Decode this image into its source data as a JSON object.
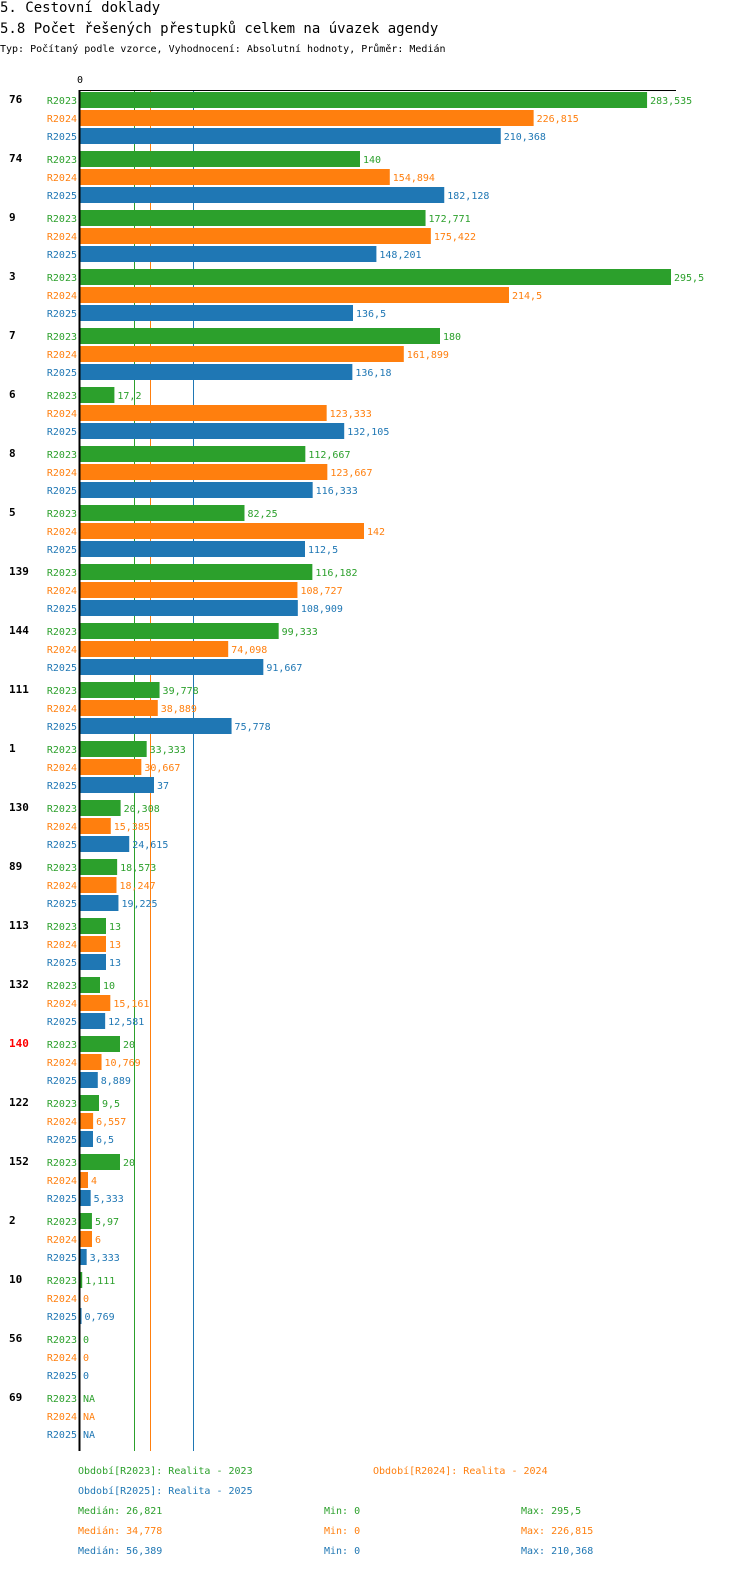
{
  "header": {
    "section": "5. Cestovní doklady",
    "title": "5.8 Počet řešených přestupků celkem na úvazek agendy",
    "subtitle": "Typ: Počítaný podle vzorce, Vyhodnocení: Absolutní hodnoty, Průměr: Medián"
  },
  "colors": {
    "R2023": "#2ca02c",
    "R2024": "#ff7f0e",
    "R2025": "#1f77b4",
    "highlight": "#ff0000"
  },
  "chart_data": {
    "type": "bar",
    "orientation": "horizontal",
    "title": "5.8 Počet řešených přestupků celkem na úvazek agendy",
    "axis_zero_label": "0",
    "xlim": [
      0,
      295.5
    ],
    "series_names": [
      "R2023",
      "R2024",
      "R2025"
    ],
    "highlighted_category": "140",
    "categories": [
      {
        "label": "76",
        "values": [
          283.535,
          226.815,
          210.368
        ],
        "labels": [
          "283,535",
          "226,815",
          "210,368"
        ]
      },
      {
        "label": "74",
        "values": [
          140,
          154.894,
          182.128
        ],
        "labels": [
          "140",
          "154,894",
          "182,128"
        ]
      },
      {
        "label": "9",
        "values": [
          172.771,
          175.422,
          148.201
        ],
        "labels": [
          "172,771",
          "175,422",
          "148,201"
        ]
      },
      {
        "label": "3",
        "values": [
          295.5,
          214.5,
          136.5
        ],
        "labels": [
          "295,5",
          "214,5",
          "136,5"
        ]
      },
      {
        "label": "7",
        "values": [
          180,
          161.899,
          136.18
        ],
        "labels": [
          "180",
          "161,899",
          "136,18"
        ]
      },
      {
        "label": "6",
        "values": [
          17.2,
          123.333,
          132.105
        ],
        "labels": [
          "17,2",
          "123,333",
          "132,105"
        ]
      },
      {
        "label": "8",
        "values": [
          112.667,
          123.667,
          116.333
        ],
        "labels": [
          "112,667",
          "123,667",
          "116,333"
        ]
      },
      {
        "label": "5",
        "values": [
          82.25,
          142,
          112.5
        ],
        "labels": [
          "82,25",
          "142",
          "112,5"
        ]
      },
      {
        "label": "139",
        "values": [
          116.182,
          108.727,
          108.909
        ],
        "labels": [
          "116,182",
          "108,727",
          "108,909"
        ]
      },
      {
        "label": "144",
        "values": [
          99.333,
          74.098,
          91.667
        ],
        "labels": [
          "99,333",
          "74,098",
          "91,667"
        ]
      },
      {
        "label": "111",
        "values": [
          39.778,
          38.889,
          75.778
        ],
        "labels": [
          "39,778",
          "38,889",
          "75,778"
        ]
      },
      {
        "label": "1",
        "values": [
          33.333,
          30.667,
          37
        ],
        "labels": [
          "33,333",
          "30,667",
          "37"
        ]
      },
      {
        "label": "130",
        "values": [
          20.308,
          15.385,
          24.615
        ],
        "labels": [
          "20,308",
          "15,385",
          "24,615"
        ]
      },
      {
        "label": "89",
        "values": [
          18.573,
          18.247,
          19.225
        ],
        "labels": [
          "18,573",
          "18,247",
          "19,225"
        ]
      },
      {
        "label": "113",
        "values": [
          13,
          13,
          13
        ],
        "labels": [
          "13",
          "13",
          "13"
        ]
      },
      {
        "label": "132",
        "values": [
          10,
          15.161,
          12.581
        ],
        "labels": [
          "10",
          "15,161",
          "12,581"
        ]
      },
      {
        "label": "140",
        "values": [
          20,
          10.769,
          8.889
        ],
        "labels": [
          "20",
          "10,769",
          "8,889"
        ]
      },
      {
        "label": "122",
        "values": [
          9.5,
          6.557,
          6.5
        ],
        "labels": [
          "9,5",
          "6,557",
          "6,5"
        ]
      },
      {
        "label": "152",
        "values": [
          20,
          4,
          5.333
        ],
        "labels": [
          "20",
          "4",
          "5,333"
        ]
      },
      {
        "label": "2",
        "values": [
          5.97,
          6,
          3.333
        ],
        "labels": [
          "5,97",
          "6",
          "3,333"
        ]
      },
      {
        "label": "10",
        "values": [
          1.111,
          0,
          0.769
        ],
        "labels": [
          "1,111",
          "0",
          "0,769"
        ]
      },
      {
        "label": "56",
        "values": [
          0,
          0,
          0
        ],
        "labels": [
          "0",
          "0",
          "0"
        ]
      },
      {
        "label": "69",
        "values": [
          null,
          null,
          null
        ],
        "labels": [
          "NA",
          "NA",
          "NA"
        ]
      }
    ],
    "medians": [
      26.821,
      34.778,
      56.389
    ]
  },
  "legend": {
    "period_2023": "Období[R2023]: Realita - 2023",
    "period_2024": "Období[R2024]: Realita - 2024",
    "period_2025": "Období[R2025]: Realita - 2025",
    "stats": [
      {
        "median": "Medián: 26,821",
        "min": "Min: 0",
        "max": "Max: 295,5"
      },
      {
        "median": "Medián: 34,778",
        "min": "Min: 0",
        "max": "Max: 226,815"
      },
      {
        "median": "Medián: 56,389",
        "min": "Min: 0",
        "max": "Max: 210,368"
      }
    ]
  }
}
